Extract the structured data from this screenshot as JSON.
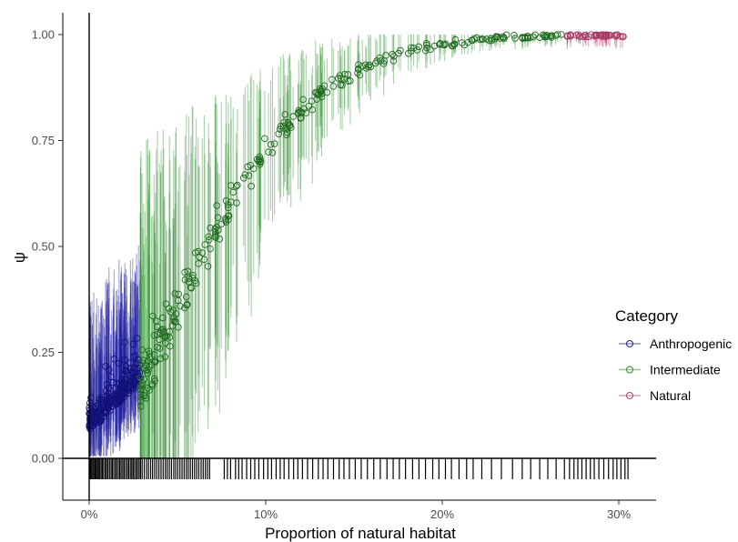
{
  "chart_data": {
    "type": "scatter",
    "title": "",
    "xlabel": "Proportion of natural habitat",
    "ylabel": "ψ",
    "xlim": [
      -0.015,
      0.32
    ],
    "ylim": [
      -0.105,
      1.05
    ],
    "x_ticks": [
      0,
      0.1,
      0.2,
      0.3
    ],
    "x_tick_labels": [
      "0%",
      "10%",
      "20%",
      "30%"
    ],
    "y_ticks": [
      0,
      0.25,
      0.5,
      0.75,
      1
    ],
    "y_tick_labels": [
      "0.00",
      "0.25",
      "0.50",
      "0.75",
      "1.00"
    ],
    "grid": false,
    "legend_title": "Category",
    "legend_position": "right",
    "series": [
      {
        "name": "Anthropogenic",
        "color": "#1b1b9e",
        "x_range": [
          0,
          0.029
        ],
        "y_range": [
          0.02,
          0.44
        ]
      },
      {
        "name": "Intermediate",
        "color": "#2e8b2e",
        "x_range": [
          0.029,
          0.27
        ],
        "y_range": [
          0.05,
          1.0
        ]
      },
      {
        "name": "Natural",
        "color": "#b5426e",
        "x_range": [
          0.27,
          0.305
        ],
        "y_range": [
          0.99,
          1.0
        ]
      }
    ],
    "rug_x": [
      0.0003,
      0.0008,
      0.0014,
      0.0021,
      0.0027,
      0.0034,
      0.004,
      0.0047,
      0.0053,
      0.006,
      0.0068,
      0.0075,
      0.0082,
      0.0091,
      0.0098,
      0.0106,
      0.0115,
      0.0124,
      0.0131,
      0.0139,
      0.0148,
      0.0156,
      0.0165,
      0.0173,
      0.0181,
      0.019,
      0.0198,
      0.0207,
      0.0216,
      0.0224,
      0.0233,
      0.0241,
      0.0249,
      0.0257,
      0.0266,
      0.0274,
      0.0283,
      0.0291,
      0.03,
      0.0312,
      0.0325,
      0.0336,
      0.0348,
      0.0359,
      0.0371,
      0.0383,
      0.0395,
      0.0407,
      0.0419,
      0.0431,
      0.0442,
      0.0454,
      0.0466,
      0.0479,
      0.049,
      0.0502,
      0.0514,
      0.0526,
      0.0538,
      0.055,
      0.0561,
      0.0573,
      0.0585,
      0.0597,
      0.0609,
      0.0621,
      0.0634,
      0.0646,
      0.0658,
      0.067,
      0.0682,
      0.0765,
      0.0783,
      0.0801,
      0.0829,
      0.0847,
      0.0866,
      0.0892,
      0.0915,
      0.0938,
      0.0961,
      0.0988,
      0.1012,
      0.1033,
      0.1059,
      0.1082,
      0.1104,
      0.1131,
      0.1158,
      0.1182,
      0.1208,
      0.1237,
      0.1266,
      0.1298,
      0.1325,
      0.1352,
      0.1384,
      0.1416,
      0.1443,
      0.1474,
      0.1507,
      0.1541,
      0.1576,
      0.1612,
      0.1649,
      0.1687,
      0.1722,
      0.1757,
      0.1792,
      0.1832,
      0.1868,
      0.1905,
      0.1946,
      0.1981,
      0.2018,
      0.2052,
      0.2095,
      0.2138,
      0.2175,
      0.2224,
      0.2279,
      0.2335,
      0.2398,
      0.2453,
      0.2501,
      0.2552,
      0.2598,
      0.2645,
      0.2692,
      0.2721,
      0.2746,
      0.2768,
      0.2791,
      0.2815,
      0.2839,
      0.2861,
      0.2887,
      0.2915,
      0.2942,
      0.2968,
      0.2989,
      0.3012,
      0.3035,
      0.3052
    ]
  }
}
